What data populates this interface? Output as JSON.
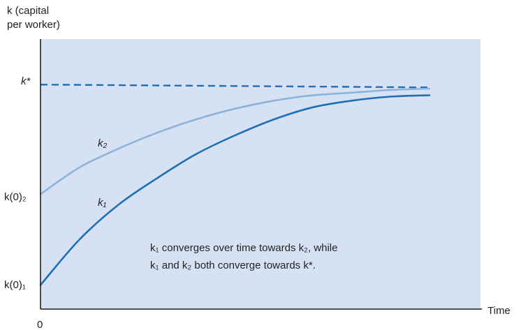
{
  "chart_data": {
    "type": "line",
    "ylabel_line1": "k (capital",
    "ylabel_line2": "per worker)",
    "xlabel": "Time",
    "x_origin_label": "0",
    "steady_state_label": "k*",
    "k02_label": "k(0)₂",
    "k01_label": "k(0)₁",
    "annotation_line1": "k₁ converges over time towards k₂, while",
    "annotation_line2": "k₁ and k₂ both converge towards k*.",
    "colors": {
      "background": "#d6e2f3",
      "axis": "#222222",
      "steady_state": "#1f6fb4",
      "k1": "#1f6fb4",
      "k2": "#8db3db"
    },
    "xlim": [
      0,
      10
    ],
    "ylim": [
      0,
      10
    ],
    "steady_state": 8.4,
    "series": [
      {
        "name": "k₂",
        "color": "#8db3db",
        "x": [
          0,
          1,
          2,
          3,
          4,
          5,
          6,
          7,
          8,
          9,
          10
        ],
        "y": [
          4.3,
          5.3,
          6.0,
          6.6,
          7.1,
          7.5,
          7.8,
          8.0,
          8.1,
          8.2,
          8.25
        ]
      },
      {
        "name": "k₁",
        "color": "#1f6fb4",
        "x": [
          0,
          1,
          2,
          3,
          4,
          5,
          6,
          7,
          8,
          9,
          10
        ],
        "y": [
          0.9,
          2.6,
          3.9,
          4.9,
          5.8,
          6.5,
          7.1,
          7.55,
          7.8,
          7.95,
          8.0
        ]
      }
    ]
  }
}
